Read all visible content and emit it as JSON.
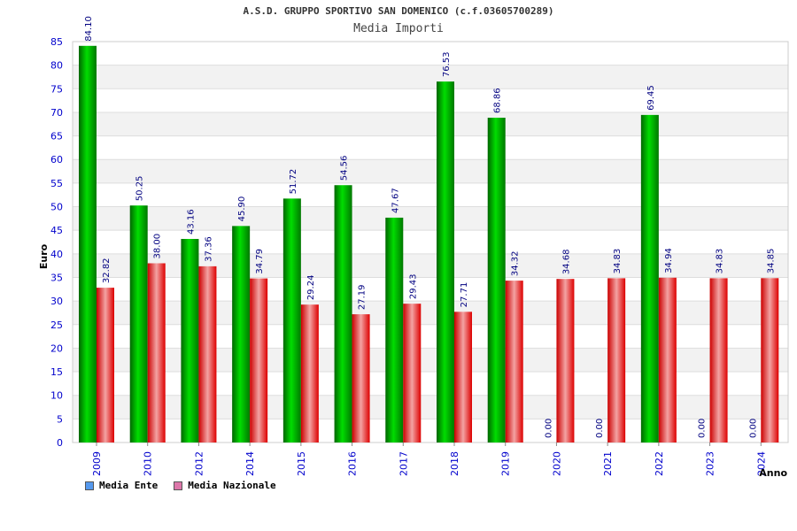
{
  "colors": {
    "ente": "#00aa00",
    "nazionale": "#ee1111",
    "legend_ente": "#5599ee",
    "legend_nazionale": "#dd77aa"
  },
  "chart_data": {
    "type": "bar",
    "title": "A.S.D. GRUPPO SPORTIVO SAN DOMENICO (c.f.03605700289)",
    "subtitle": "Media Importi",
    "xlabel": "Anno",
    "ylabel": "Euro",
    "ylim": [
      0,
      85
    ],
    "yticks": [
      0,
      5,
      10,
      15,
      20,
      25,
      30,
      35,
      40,
      45,
      50,
      55,
      60,
      65,
      70,
      75,
      80,
      85
    ],
    "grid": true,
    "legend_position": "bottom-left",
    "categories": [
      "2009",
      "2010",
      "2012",
      "2014",
      "2015",
      "2016",
      "2017",
      "2018",
      "2019",
      "2020",
      "2021",
      "2022",
      "2023",
      "2024"
    ],
    "series": [
      {
        "name": "Media Ente",
        "values": [
          84.1,
          50.25,
          43.16,
          45.9,
          51.72,
          54.56,
          47.67,
          76.53,
          68.86,
          0.0,
          0.0,
          69.45,
          0.0,
          0.0
        ],
        "labels": [
          "84.10",
          "50.25",
          "43.16",
          "45.90",
          "51.72",
          "54.56",
          "47.67",
          "76.53",
          "68.86",
          "0.00",
          "0.00",
          "69.45",
          "0.00",
          "0.00"
        ]
      },
      {
        "name": "Media Nazionale",
        "values": [
          32.82,
          38.0,
          37.36,
          34.79,
          29.24,
          27.19,
          29.43,
          27.71,
          34.32,
          34.68,
          34.83,
          34.94,
          34.83,
          34.85
        ],
        "labels": [
          "32.82",
          "38.00",
          "37.36",
          "34.79",
          "29.24",
          "27.19",
          "29.43",
          "27.71",
          "34.32",
          "34.68",
          "34.83",
          "34.94",
          "34.83",
          "34.85"
        ]
      }
    ]
  }
}
